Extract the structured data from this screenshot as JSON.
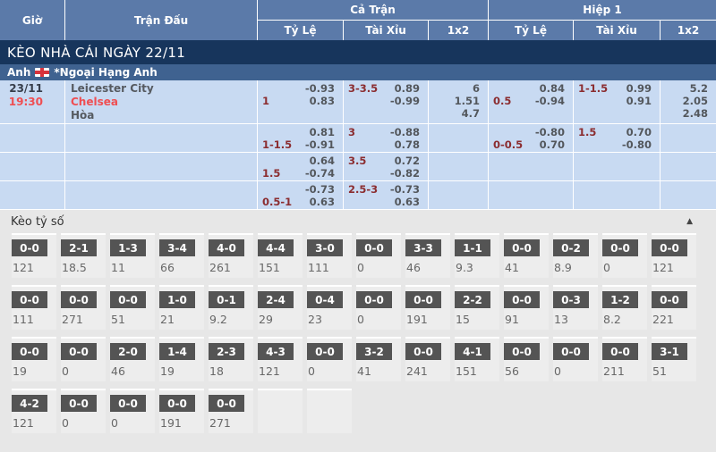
{
  "header": {
    "col_time": "Giờ",
    "col_match": "Trận Đấu",
    "col_full": "Cả Trận",
    "col_half": "Hiệp 1",
    "col_hdp": "Tỷ Lệ",
    "col_ou": "Tài Xỉu",
    "col_1x2": "1x2"
  },
  "banner": {
    "title": "KÈO NHÀ CÁI NGÀY 22/11"
  },
  "league": {
    "country": "Anh",
    "flag_icon": "england-flag",
    "name": "*Ngoại Hạng Anh"
  },
  "match": {
    "rows": [
      {
        "date": "23/11",
        "time": "19:30",
        "home": "Leicester City",
        "away": "Chelsea",
        "draw": "Hòa",
        "ft_hdp_line": "1",
        "ft_hdp_v1": "-0.93",
        "ft_hdp_v2": "0.83",
        "ft_ou_line": "3-3.5",
        "ft_ou_v1": "0.89",
        "ft_ou_v2": "-0.99",
        "ft_1x2_1": "6",
        "ft_1x2_2": "1.51",
        "ft_1x2_3": "4.7",
        "h1_hdp_line": "0.5",
        "h1_hdp_v1": "0.84",
        "h1_hdp_v2": "-0.94",
        "h1_ou_line": "1-1.5",
        "h1_ou_v1": "0.99",
        "h1_ou_v2": "0.91",
        "h1_1x2_1": "5.2",
        "h1_1x2_2": "2.05",
        "h1_1x2_3": "2.48"
      },
      {
        "ft_hdp_line": "1-1.5",
        "ft_hdp_v1": "0.81",
        "ft_hdp_v2": "-0.91",
        "ft_ou_line": "3",
        "ft_ou_v1": "-0.88",
        "ft_ou_v2": "0.78",
        "h1_hdp_line": "0-0.5",
        "h1_hdp_v1": "-0.80",
        "h1_hdp_v2": "0.70",
        "h1_ou_line": "1.5",
        "h1_ou_v1": "0.70",
        "h1_ou_v2": "-0.80"
      },
      {
        "ft_hdp_line": "1.5",
        "ft_hdp_v1": "0.64",
        "ft_hdp_v2": "-0.74",
        "ft_ou_line": "3.5",
        "ft_ou_v1": "0.72",
        "ft_ou_v2": "-0.82"
      },
      {
        "ft_hdp_line": "0.5-1",
        "ft_hdp_v1": "-0.73",
        "ft_hdp_v2": "0.63",
        "ft_ou_line": "2.5-3",
        "ft_ou_v1": "-0.73",
        "ft_ou_v2": "0.63"
      }
    ]
  },
  "score_section": {
    "title": "Kèo tỷ số",
    "collapse_icon": "▲",
    "rows": [
      [
        {
          "score": "0-0",
          "odds": "121"
        },
        {
          "score": "2-1",
          "odds": "18.5"
        },
        {
          "score": "1-3",
          "odds": "11"
        },
        {
          "score": "3-4",
          "odds": "66"
        },
        {
          "score": "4-0",
          "odds": "261"
        },
        {
          "score": "4-4",
          "odds": "151"
        },
        {
          "score": "3-0",
          "odds": "111"
        },
        {
          "score": "0-0",
          "odds": "0"
        },
        {
          "score": "3-3",
          "odds": "46"
        },
        {
          "score": "1-1",
          "odds": "9.3"
        },
        {
          "score": "0-0",
          "odds": "41"
        },
        {
          "score": "0-2",
          "odds": "8.9"
        },
        {
          "score": "0-0",
          "odds": "0"
        },
        {
          "score": "0-0",
          "odds": "121"
        }
      ],
      [
        {
          "score": "0-0",
          "odds": "111"
        },
        {
          "score": "0-0",
          "odds": "271"
        },
        {
          "score": "0-0",
          "odds": "51"
        },
        {
          "score": "1-0",
          "odds": "21"
        },
        {
          "score": "0-1",
          "odds": "9.2"
        },
        {
          "score": "2-4",
          "odds": "29"
        },
        {
          "score": "0-4",
          "odds": "23"
        },
        {
          "score": "0-0",
          "odds": "0"
        },
        {
          "score": "0-0",
          "odds": "191"
        },
        {
          "score": "2-2",
          "odds": "15"
        },
        {
          "score": "0-0",
          "odds": "91"
        },
        {
          "score": "0-3",
          "odds": "13"
        },
        {
          "score": "1-2",
          "odds": "8.2"
        },
        {
          "score": "0-0",
          "odds": "221"
        }
      ],
      [
        {
          "score": "0-0",
          "odds": "19"
        },
        {
          "score": "0-0",
          "odds": "0"
        },
        {
          "score": "2-0",
          "odds": "46"
        },
        {
          "score": "1-4",
          "odds": "19"
        },
        {
          "score": "2-3",
          "odds": "18"
        },
        {
          "score": "4-3",
          "odds": "121"
        },
        {
          "score": "0-0",
          "odds": "0"
        },
        {
          "score": "3-2",
          "odds": "41"
        },
        {
          "score": "0-0",
          "odds": "241"
        },
        {
          "score": "4-1",
          "odds": "151"
        },
        {
          "score": "0-0",
          "odds": "56"
        },
        {
          "score": "0-0",
          "odds": "0"
        },
        {
          "score": "0-0",
          "odds": "211"
        },
        {
          "score": "3-1",
          "odds": "51"
        }
      ],
      [
        {
          "score": "4-2",
          "odds": "121"
        },
        {
          "score": "0-0",
          "odds": "0"
        },
        {
          "score": "0-0",
          "odds": "0"
        },
        {
          "score": "0-0",
          "odds": "191"
        },
        {
          "score": "0-0",
          "odds": "271"
        },
        {
          "score": "",
          "odds": ""
        },
        {
          "score": "",
          "odds": ""
        }
      ]
    ]
  },
  "colors": {
    "header_blue": "#5b7aa9",
    "banner_navy": "#17355c",
    "league_blue": "#3f6290",
    "row_blue": "#c8daf2",
    "handicap_maroon": "#8b2d30",
    "value_gray": "#53575c",
    "accent_red": "#ef4e52",
    "score_box_gray": "#545454",
    "section_bg": "#e7e7e7"
  }
}
